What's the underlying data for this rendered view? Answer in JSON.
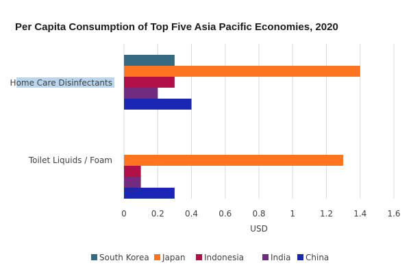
{
  "chart_data": {
    "type": "bar",
    "orientation": "horizontal",
    "title": "Per Capita Consumption of Top Five Asia Pacific Economies, 2020",
    "xlabel": "USD",
    "ylabel": "",
    "categories": [
      "Home Care Disinfectants",
      "Toilet Liquids / Foam"
    ],
    "highlighted_category": "Home Care Disinfectants",
    "xlim": [
      0,
      1.6
    ],
    "xticks": [
      0,
      0.2,
      0.4,
      0.6,
      0.8,
      1,
      1.2,
      1.4,
      1.6
    ],
    "xtick_labels": [
      "0",
      "0.2",
      "0.4",
      "0.6",
      "0.8",
      "1",
      "1.2",
      "1.4",
      "1.6"
    ],
    "grid": "vertical",
    "legend_position": "bottom",
    "series": [
      {
        "name": "South Korea",
        "color": "#376a80",
        "values": [
          0.3,
          0
        ]
      },
      {
        "name": "Japan",
        "color": "#fd7521",
        "values": [
          1.4,
          1.3
        ]
      },
      {
        "name": "Indonesia",
        "color": "#b01047",
        "values": [
          0.3,
          0.1
        ]
      },
      {
        "name": "India",
        "color": "#702d7f",
        "values": [
          0.2,
          0.1
        ]
      },
      {
        "name": "China",
        "color": "#1a27b5",
        "values": [
          0.4,
          0.3
        ]
      }
    ]
  }
}
